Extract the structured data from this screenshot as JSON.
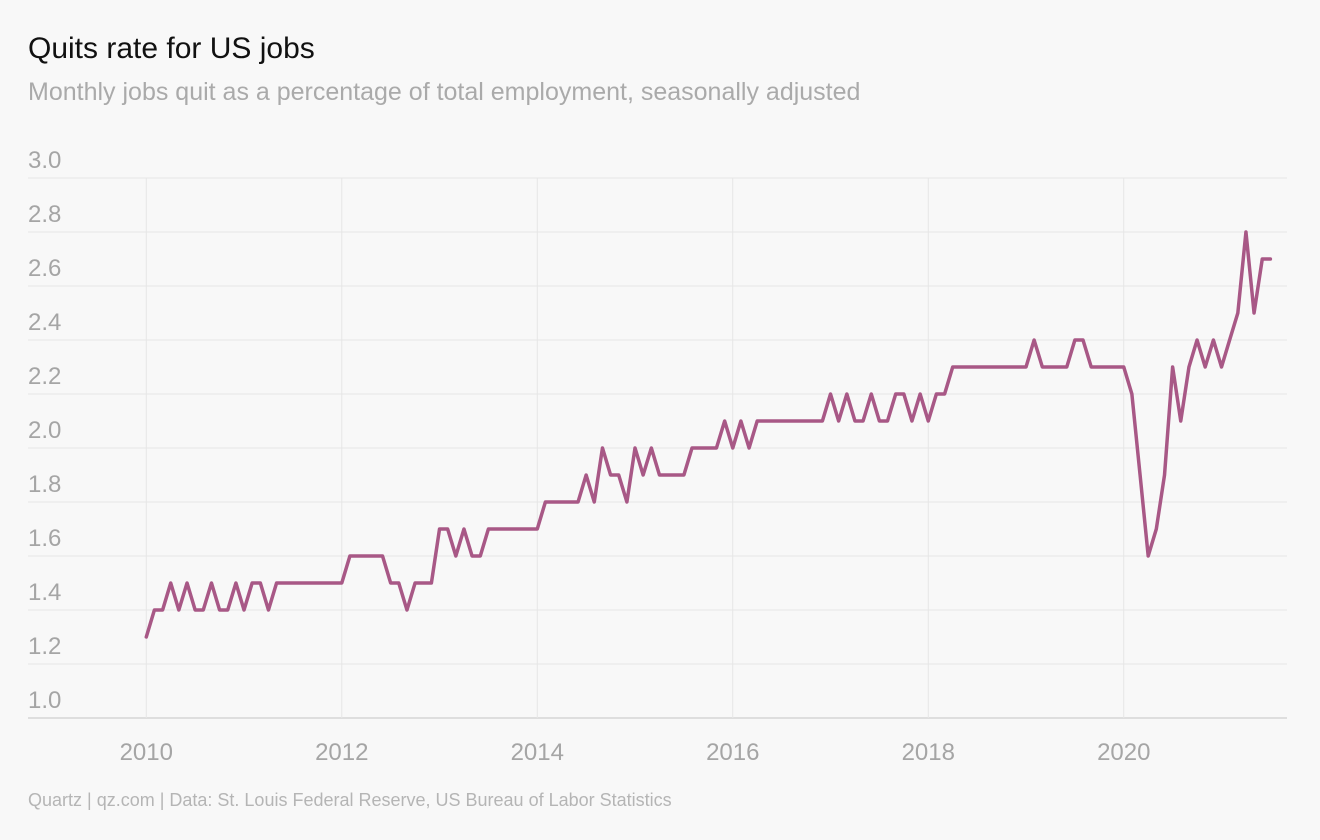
{
  "chart_data": {
    "type": "line",
    "title": "Quits rate for US jobs",
    "subtitle": "Monthly jobs quit as a percentage of total employment, seasonally adjusted",
    "source": "Quartz | qz.com | Data: St. Louis Federal Reserve, US Bureau of Labor Statistics",
    "xlim": [
      2008.79,
      2021.67
    ],
    "xticks": [
      2010,
      2012,
      2014,
      2016,
      2018,
      2020
    ],
    "ylim": [
      1.0,
      3.0
    ],
    "yticks": [
      {
        "value": 1.0,
        "label": "1.0"
      },
      1.2,
      1.4,
      1.6,
      1.8,
      {
        "value": 2.0,
        "label": "2.0"
      },
      2.2,
      2.4,
      2.6,
      2.8,
      {
        "value": 3.0,
        "label": "3.0"
      }
    ],
    "grid": true,
    "color": "#a85886",
    "x": [
      2010,
      2010.083,
      2010.167,
      2010.25,
      2010.333,
      2010.417,
      2010.5,
      2010.583,
      2010.667,
      2010.75,
      2010.833,
      2010.917,
      2011,
      2011.083,
      2011.167,
      2011.25,
      2011.333,
      2011.417,
      2011.5,
      2011.583,
      2011.667,
      2011.75,
      2011.833,
      2011.917,
      2012,
      2012.083,
      2012.167,
      2012.25,
      2012.333,
      2012.417,
      2012.5,
      2012.583,
      2012.667,
      2012.75,
      2012.833,
      2012.917,
      2013,
      2013.083,
      2013.167,
      2013.25,
      2013.333,
      2013.417,
      2013.5,
      2013.583,
      2013.667,
      2013.75,
      2013.833,
      2013.917,
      2014,
      2014.083,
      2014.167,
      2014.25,
      2014.333,
      2014.417,
      2014.5,
      2014.583,
      2014.667,
      2014.75,
      2014.833,
      2014.917,
      2015,
      2015.083,
      2015.167,
      2015.25,
      2015.333,
      2015.417,
      2015.5,
      2015.583,
      2015.667,
      2015.75,
      2015.833,
      2015.917,
      2016,
      2016.083,
      2016.167,
      2016.25,
      2016.333,
      2016.417,
      2016.5,
      2016.583,
      2016.667,
      2016.75,
      2016.833,
      2016.917,
      2017,
      2017.083,
      2017.167,
      2017.25,
      2017.333,
      2017.417,
      2017.5,
      2017.583,
      2017.667,
      2017.75,
      2017.833,
      2017.917,
      2018,
      2018.083,
      2018.167,
      2018.25,
      2018.333,
      2018.417,
      2018.5,
      2018.583,
      2018.667,
      2018.75,
      2018.833,
      2018.917,
      2019,
      2019.083,
      2019.167,
      2019.25,
      2019.333,
      2019.417,
      2019.5,
      2019.583,
      2019.667,
      2019.75,
      2019.833,
      2019.917,
      2020,
      2020.083,
      2020.167,
      2020.25,
      2020.333,
      2020.417,
      2020.5,
      2020.583,
      2020.667,
      2020.75,
      2020.833,
      2020.917,
      2021,
      2021.083,
      2021.167,
      2021.25,
      2021.333,
      2021.417,
      2021.5
    ],
    "values": [
      1.3,
      1.4,
      1.4,
      1.5,
      1.4,
      1.5,
      1.4,
      1.4,
      1.5,
      1.4,
      1.4,
      1.5,
      1.4,
      1.5,
      1.5,
      1.4,
      1.5,
      1.5,
      1.5,
      1.5,
      1.5,
      1.5,
      1.5,
      1.5,
      1.5,
      1.6,
      1.6,
      1.6,
      1.6,
      1.6,
      1.5,
      1.5,
      1.4,
      1.5,
      1.5,
      1.5,
      1.7,
      1.7,
      1.6,
      1.7,
      1.6,
      1.6,
      1.7,
      1.7,
      1.7,
      1.7,
      1.7,
      1.7,
      1.7,
      1.8,
      1.8,
      1.8,
      1.8,
      1.8,
      1.9,
      1.8,
      2.0,
      1.9,
      1.9,
      1.8,
      2.0,
      1.9,
      2.0,
      1.9,
      1.9,
      1.9,
      1.9,
      2.0,
      2.0,
      2.0,
      2.0,
      2.1,
      2.0,
      2.1,
      2.0,
      2.1,
      2.1,
      2.1,
      2.1,
      2.1,
      2.1,
      2.1,
      2.1,
      2.1,
      2.2,
      2.1,
      2.2,
      2.1,
      2.1,
      2.2,
      2.1,
      2.1,
      2.2,
      2.2,
      2.1,
      2.2,
      2.1,
      2.2,
      2.2,
      2.3,
      2.3,
      2.3,
      2.3,
      2.3,
      2.3,
      2.3,
      2.3,
      2.3,
      2.3,
      2.4,
      2.3,
      2.3,
      2.3,
      2.3,
      2.4,
      2.4,
      2.3,
      2.3,
      2.3,
      2.3,
      2.3,
      2.2,
      1.9,
      1.6,
      1.7,
      1.9,
      2.3,
      2.1,
      2.3,
      2.4,
      2.3,
      2.4,
      2.3,
      2.4,
      2.5,
      2.8,
      2.5,
      2.7,
      2.7
    ]
  }
}
